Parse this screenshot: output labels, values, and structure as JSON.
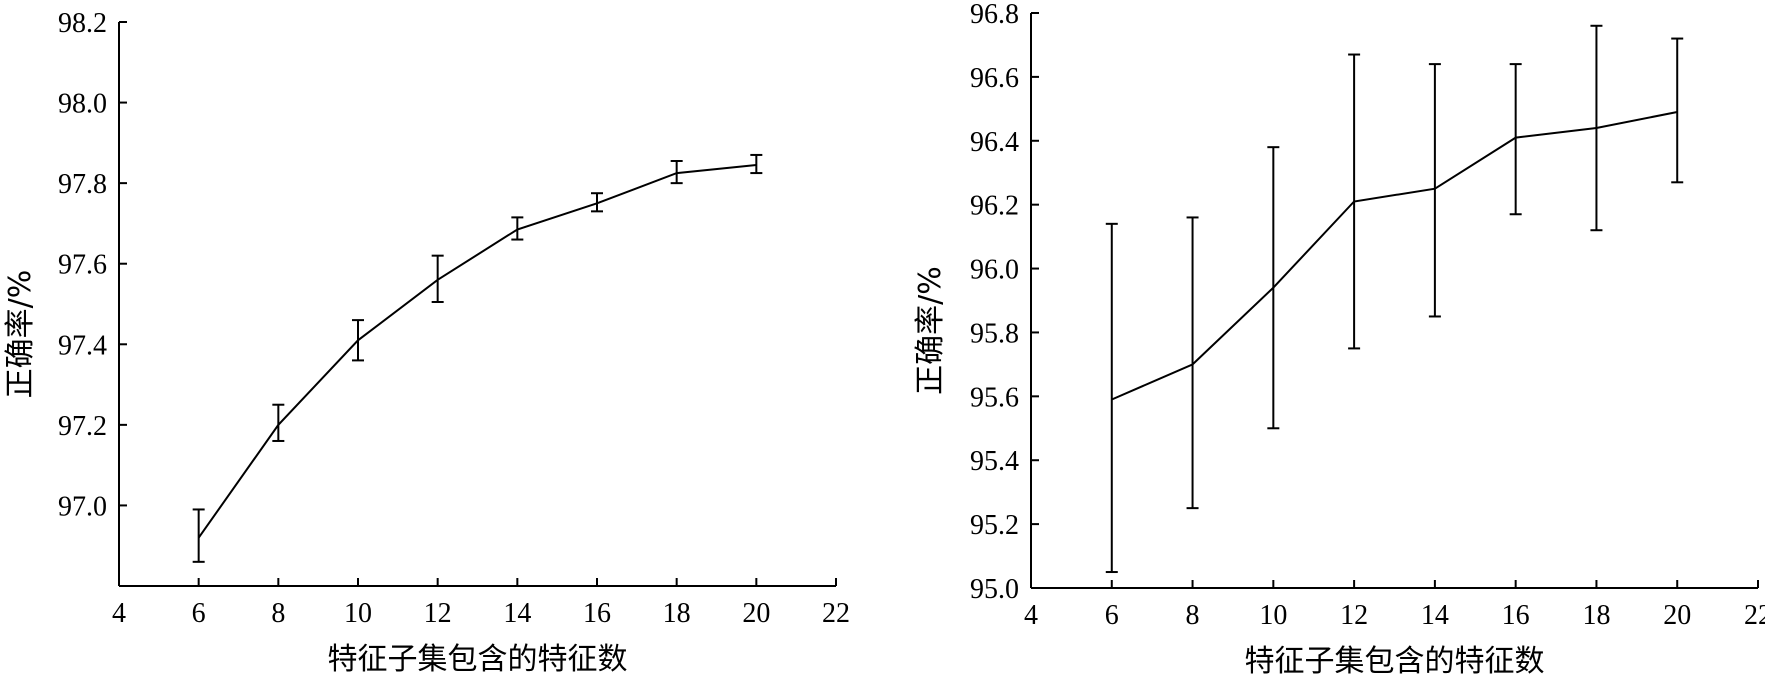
{
  "chart_data": [
    {
      "type": "line",
      "title": "",
      "xlabel": "特征子集包含的特征数",
      "ylabel": "正确率/%",
      "xlim": [
        4,
        22
      ],
      "ylim": [
        96.8,
        98.2
      ],
      "xticks": [
        4,
        6,
        8,
        10,
        12,
        14,
        16,
        18,
        20,
        22
      ],
      "yticks": [
        97.0,
        97.2,
        97.4,
        97.6,
        97.8,
        98.0,
        98.2
      ],
      "tick_decimals": 1,
      "grid": false,
      "legend": "none",
      "x": [
        6,
        8,
        10,
        12,
        14,
        16,
        18,
        20
      ],
      "series": [
        {
          "values": [
            96.92,
            97.2,
            97.41,
            97.56,
            97.685,
            97.75,
            97.825,
            97.845
          ],
          "err_low": [
            96.86,
            97.16,
            97.36,
            97.505,
            97.66,
            97.73,
            97.8,
            97.825
          ],
          "err_high": [
            96.99,
            97.25,
            97.46,
            97.62,
            97.715,
            97.775,
            97.855,
            97.87
          ]
        }
      ]
    },
    {
      "type": "line",
      "title": "",
      "xlabel": "特征子集包含的特征数",
      "ylabel": "正确率/%",
      "xlim": [
        4,
        22
      ],
      "ylim": [
        95.0,
        96.8
      ],
      "xticks": [
        4,
        6,
        8,
        10,
        12,
        14,
        16,
        18,
        20,
        22
      ],
      "yticks": [
        95.0,
        95.2,
        95.4,
        95.6,
        95.8,
        96.0,
        96.2,
        96.4,
        96.6,
        96.8
      ],
      "tick_decimals": 1,
      "grid": false,
      "legend": "none",
      "x": [
        6,
        8,
        10,
        12,
        14,
        16,
        18,
        20
      ],
      "series": [
        {
          "values": [
            95.59,
            95.7,
            95.94,
            96.21,
            96.25,
            96.41,
            96.44,
            96.49
          ],
          "err_low": [
            95.05,
            95.25,
            95.5,
            95.75,
            95.85,
            96.17,
            96.12,
            96.27
          ],
          "err_high": [
            96.14,
            96.16,
            96.38,
            96.67,
            96.64,
            96.64,
            96.76,
            96.72
          ]
        }
      ]
    }
  ]
}
